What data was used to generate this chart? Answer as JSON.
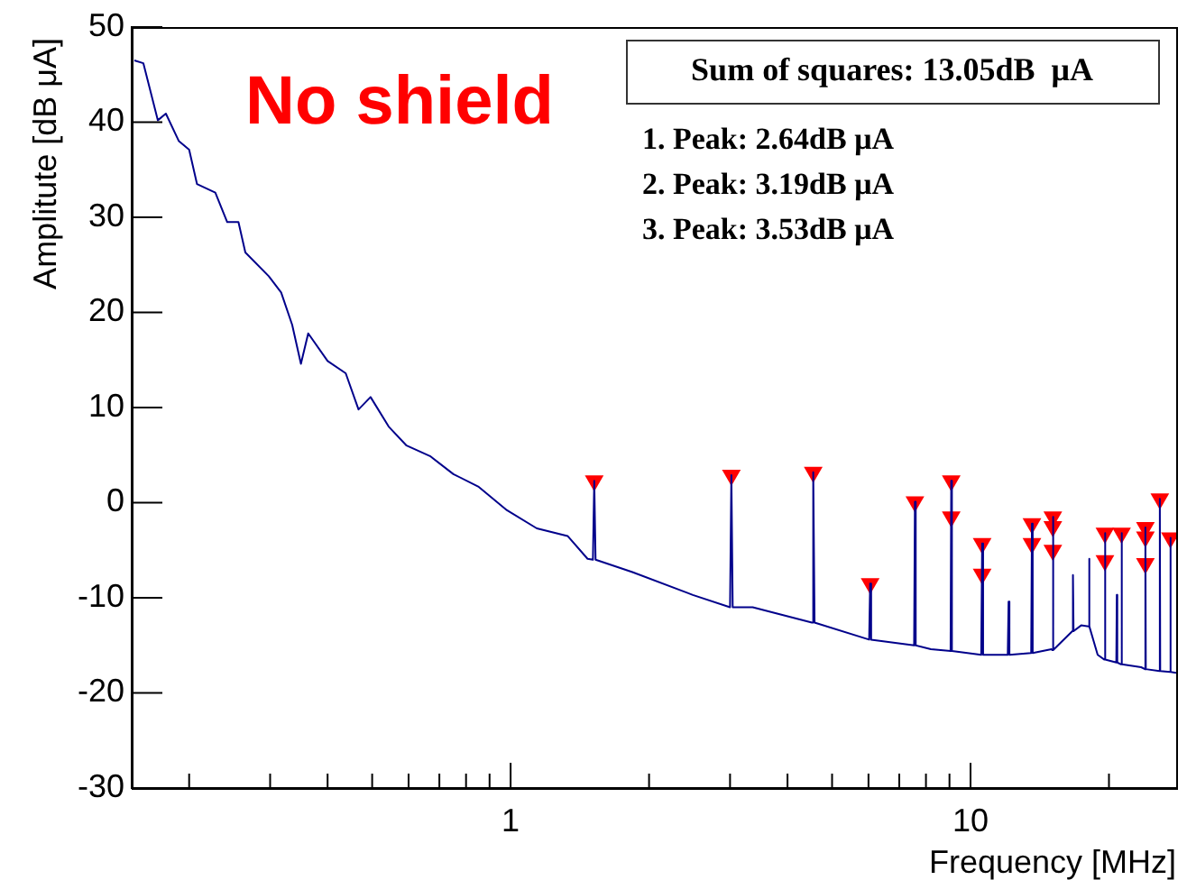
{
  "chart_data": {
    "type": "line",
    "xlabel": "Frequency [MHz]",
    "ylabel": "Amplitute [dB μA]",
    "annotations": [
      "No shield",
      "Sum of squares: 13.05dB  μA",
      "1. Peak: 2.64dB μA",
      "2. Peak: 3.19dB μA",
      "3. Peak: 3.53dB μA"
    ],
    "log": "x",
    "grid": false,
    "legend": false,
    "line_style": "solid",
    "xlim": [
      0.15,
      28
    ],
    "xticks": [
      {
        "value": 0.2,
        "label": null
      },
      {
        "value": 0.3,
        "label": null
      },
      {
        "value": 0.4,
        "label": null
      },
      {
        "value": 0.5,
        "label": null
      },
      {
        "value": 0.6,
        "label": null
      },
      {
        "value": 0.7,
        "label": null
      },
      {
        "value": 0.8,
        "label": null
      },
      {
        "value": 0.9,
        "label": null
      },
      1,
      {
        "value": 2,
        "label": null
      },
      {
        "value": 3,
        "label": null
      },
      {
        "value": 4,
        "label": null
      },
      {
        "value": 5,
        "label": null
      },
      {
        "value": 6,
        "label": null
      },
      {
        "value": 7,
        "label": null
      },
      {
        "value": 8,
        "label": null
      },
      {
        "value": 9,
        "label": null
      },
      10,
      {
        "value": 20,
        "label": null
      }
    ],
    "ylim": [
      -30,
      50
    ],
    "yticks": [
      -30,
      -20,
      -10,
      0,
      10,
      20,
      30,
      40,
      50
    ],
    "series": [
      {
        "type": "line",
        "color": "#00008b",
        "marker": "none",
        "x": [
          0.152,
          0.159,
          0.171,
          0.178,
          0.19,
          0.2,
          0.208,
          0.228,
          0.242,
          0.256,
          0.265,
          0.298,
          0.317,
          0.335,
          0.35,
          0.363,
          0.4,
          0.438,
          0.467,
          0.496,
          0.543,
          0.594,
          0.668,
          0.751,
          0.85,
          0.982,
          1.14,
          1.33,
          1.47,
          1.51,
          1.52,
          1.53,
          1.84,
          2.49,
          3.0,
          3.02,
          3.04,
          3.36,
          4.52,
          4.55,
          4.58,
          6.02,
          6.05,
          6.08,
          7.54,
          7.57,
          7.6,
          8.2,
          9.05,
          9.08,
          9.11,
          10.55,
          10.6,
          10.65,
          11.0,
          12.05,
          12.1,
          12.15,
          13.55,
          13.6,
          13.65,
          15.0,
          15.05,
          15.1,
          15.15,
          16.65,
          16.7,
          16.75,
          17.4,
          18.05,
          18.1,
          18.15,
          18.9,
          19.55,
          19.6,
          19.65,
          20.75,
          20.8,
          20.85,
          21.25,
          21.3,
          21.35,
          23.5,
          23.95,
          24.0,
          24.05,
          25.75,
          25.8,
          25.85,
          27.15,
          27.2,
          27.25,
          28
        ],
        "values": [
          46.5,
          46.2,
          40.2,
          40.9,
          38.0,
          37.1,
          33.5,
          32.6,
          29.5,
          29.5,
          26.3,
          23.8,
          22.1,
          18.7,
          14.6,
          17.8,
          14.9,
          13.6,
          9.8,
          11.1,
          8.0,
          6.0,
          4.9,
          3.0,
          1.7,
          -0.8,
          -2.7,
          -3.5,
          -5.9,
          -6,
          2.3,
          -6,
          -7.3,
          -9.7,
          -11,
          2.9,
          -11,
          -11.0,
          -12.6,
          3.2,
          -12.6,
          -14.4,
          -8.5,
          -14.4,
          -15,
          0.1,
          -15,
          -15.4,
          -15.6,
          2.3,
          -15.6,
          -16,
          -4.3,
          -16,
          -16.0,
          -16,
          -10.4,
          -16,
          -15.8,
          -2.2,
          -15.8,
          -15.4,
          -15.5,
          -1.5,
          -15.5,
          -13.5,
          -7.6,
          -13.5,
          -12.9,
          -13,
          -5.9,
          -13,
          -16.0,
          -16.5,
          -3.2,
          -16.5,
          -16.8,
          -9.7,
          -16.8,
          -17,
          -3.2,
          -17,
          -17.3,
          -17.5,
          -2.6,
          -17.5,
          -17.7,
          0.4,
          -17.7,
          -17.8,
          -3.7,
          -17.8,
          -17.9
        ]
      },
      {
        "type": "scatter",
        "color": "#ff0000",
        "marker": "triangle",
        "x": [
          1.52,
          3.02,
          4.55,
          6.05,
          7.57,
          9.08,
          9.08,
          10.6,
          10.6,
          13.6,
          13.6,
          15.1,
          15.1,
          15.1,
          19.6,
          19.6,
          21.3,
          24.0,
          24.0,
          24.0,
          25.8,
          27.2
        ],
        "values": [
          2.3,
          2.9,
          3.2,
          -8.5,
          0.1,
          2.3,
          -1.5,
          -4.3,
          -7.5,
          -2.2,
          -4.3,
          -1.5,
          -2.5,
          -5.0,
          -3.2,
          -6.1,
          -3.2,
          -2.6,
          -3.6,
          -6.4,
          0.4,
          -3.7
        ]
      }
    ]
  }
}
